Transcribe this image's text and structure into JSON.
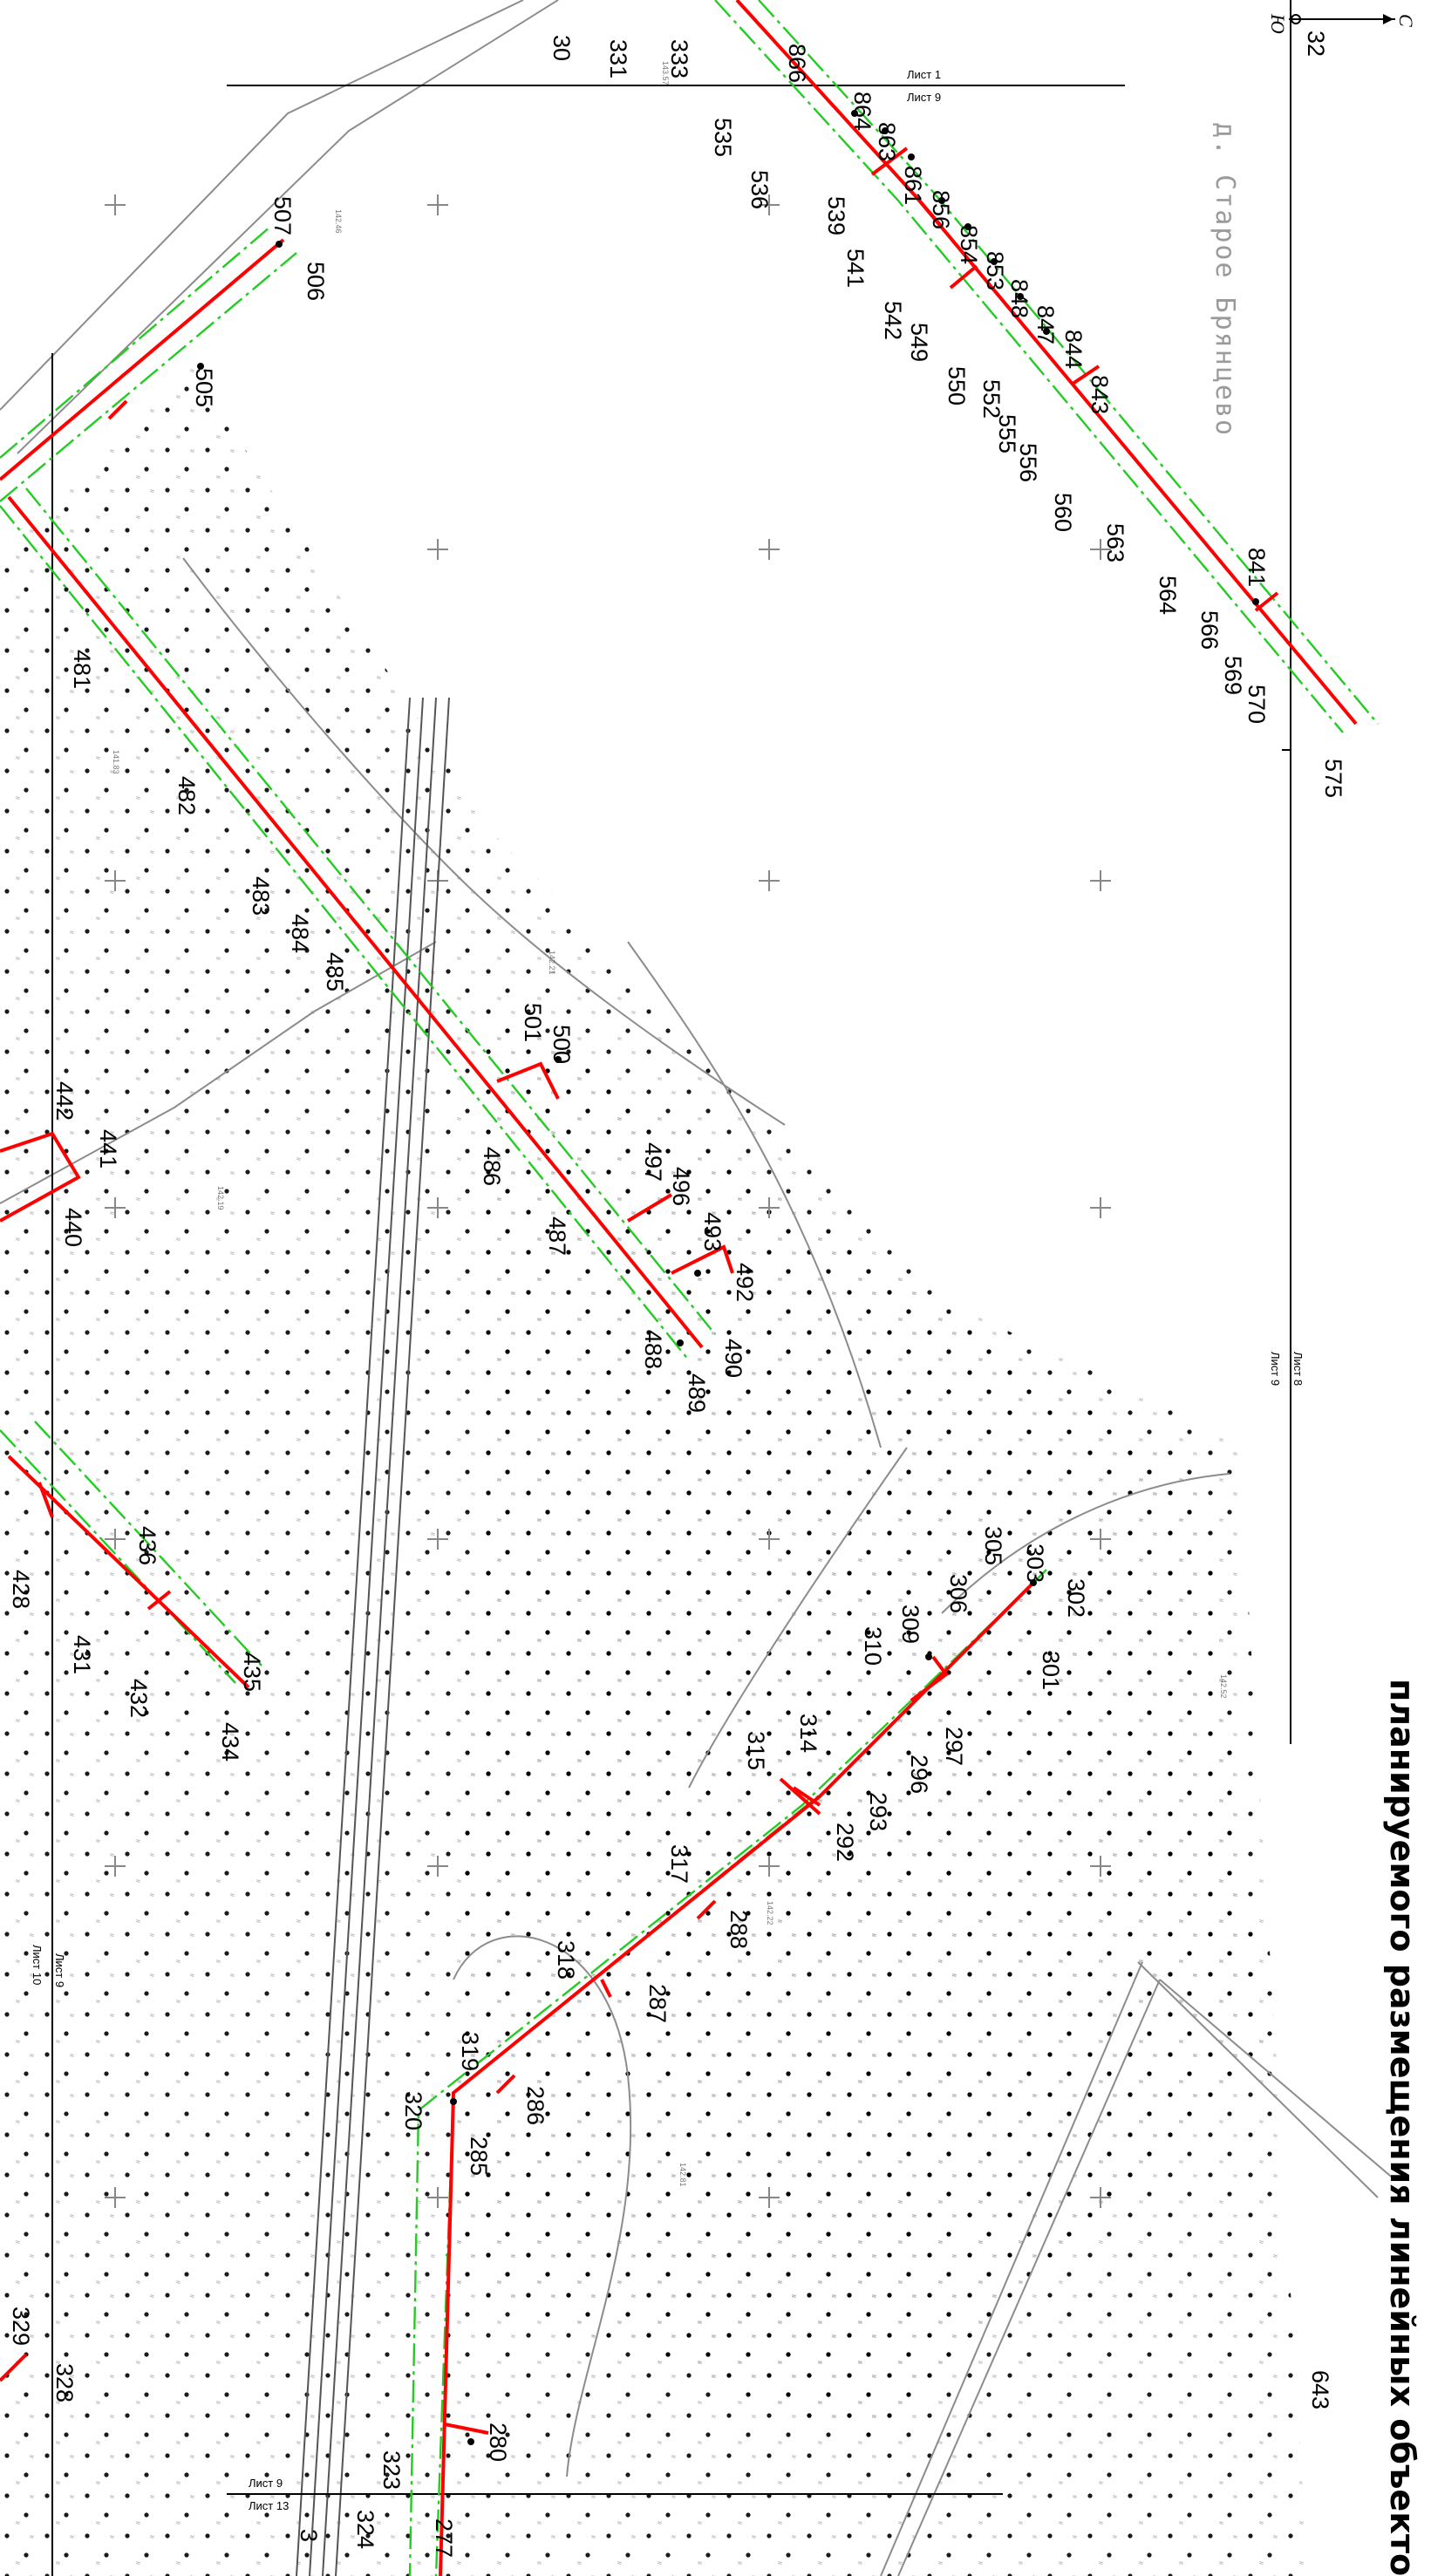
{
  "title": "планируемого размещения линейных объектов",
  "village": "д. Старое Брянцево",
  "compass": {
    "north": "С",
    "south": "Ю"
  },
  "sheets": {
    "top_left": "Лист 1",
    "top_right": "Лист 9",
    "mid_left": "Лист 9",
    "mid_right": "Лист 8",
    "left_a": "Лист 10",
    "left_b": "Лист 9",
    "bottom_a": "Лист 9",
    "bottom_b": "Лист 13"
  },
  "points": {
    "p30": "30",
    "p331": "331",
    "p333": "333",
    "p866": "866",
    "p864": "864",
    "p863": "863",
    "p861": "861",
    "p856": "856",
    "p854": "854",
    "p853": "853",
    "p848": "848",
    "p847": "847",
    "p844": "844",
    "p843": "843",
    "p535": "535",
    "p536": "536",
    "p539": "539",
    "p541": "541",
    "p542": "542",
    "p549": "549",
    "p550": "550",
    "p552": "552",
    "p555": "555",
    "p556": "556",
    "p560": "560",
    "p563": "563",
    "p564": "564",
    "p566": "566",
    "p569": "569",
    "p570": "570",
    "p841": "841",
    "p575": "575",
    "p32": "32",
    "p507": "507",
    "p506": "506",
    "p505": "505",
    "p481": "481",
    "p482": "482",
    "p483": "483",
    "p484": "484",
    "p485": "485",
    "p501": "501",
    "p500": "500",
    "p486": "486",
    "p487": "487",
    "p497": "497",
    "p496": "496",
    "p493": "493",
    "p492": "492",
    "p488": "488",
    "p489": "489",
    "p490": "490",
    "p442": "442",
    "p441": "441",
    "p440": "440",
    "p436": "436",
    "p428": "428",
    "p431": "431",
    "p432": "432",
    "p435": "435",
    "p434": "434",
    "p305": "305",
    "p303": "303",
    "p302": "302",
    "p306": "306",
    "p309": "309",
    "p301": "301",
    "p310": "310",
    "p297": "297",
    "p296": "296",
    "p314": "314",
    "p315": "315",
    "p293": "293",
    "p292": "292",
    "p317": "317",
    "p288": "288",
    "p318": "318",
    "p287": "287",
    "p319": "319",
    "p286": "286",
    "p320": "320",
    "p285": "285",
    "p329": "329",
    "p328": "328",
    "p280": "280",
    "p323": "323",
    "p324": "324",
    "p277": "277",
    "p3": "3",
    "p643": "643"
  },
  "elevations": [
    "142.46",
    "142.21",
    "142.22",
    "143.57",
    "142.81",
    "142.19",
    "141.83",
    "142.52"
  ],
  "colors": {
    "route": "#ff0000",
    "buffer": "#22cc22",
    "background": "#ffffff",
    "grid": "#9a9a9a"
  }
}
